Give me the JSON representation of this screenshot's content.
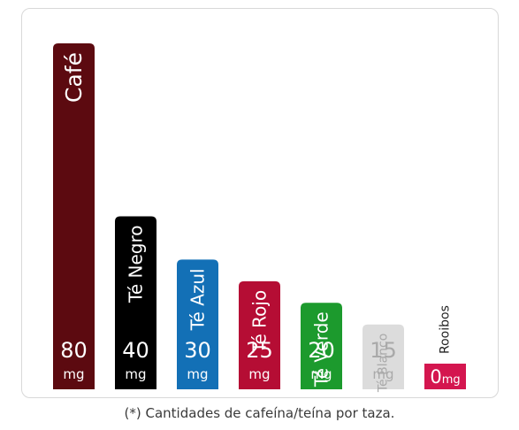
{
  "chart_data": {
    "type": "bar",
    "categories": [
      "Café",
      "Té Negro",
      "Té Azul",
      "Té Rojo",
      "Té Verde",
      "Té Blanco",
      "Rooibos"
    ],
    "values": [
      80,
      40,
      30,
      25,
      20,
      15,
      0
    ],
    "unit": "mg",
    "colors": [
      "#5c0a10",
      "#000000",
      "#1370b6",
      "#b50d34",
      "#1c9a2d",
      "#dcdcdc",
      "#d4164f"
    ],
    "value_text_colors": [
      "#ffffff",
      "#ffffff",
      "#ffffff",
      "#ffffff",
      "#ffffff",
      "#a9a9a9",
      "#ffffff"
    ],
    "grid": false,
    "legend": "none"
  },
  "caption": "(*) Cantidades de cafeína/teína por taza."
}
